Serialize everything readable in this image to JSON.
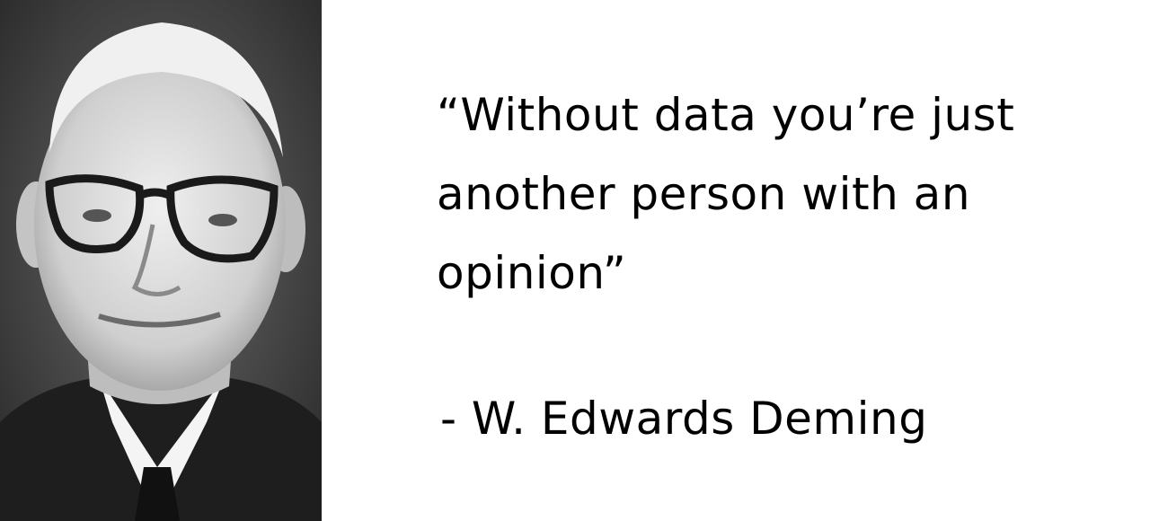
{
  "portrait": {
    "icon": "portrait-photo-icon",
    "colors": {
      "background": "#3a3a3a",
      "skin": "#d9d9d9",
      "hair": "#f0f0f0",
      "suit": "#1e1e1e",
      "shirt": "#f4f4f4"
    }
  },
  "quote": {
    "lines": [
      "“Without data you’re just",
      "another person with an",
      "opinion”"
    ]
  },
  "author": "- W. Edwards Deming"
}
